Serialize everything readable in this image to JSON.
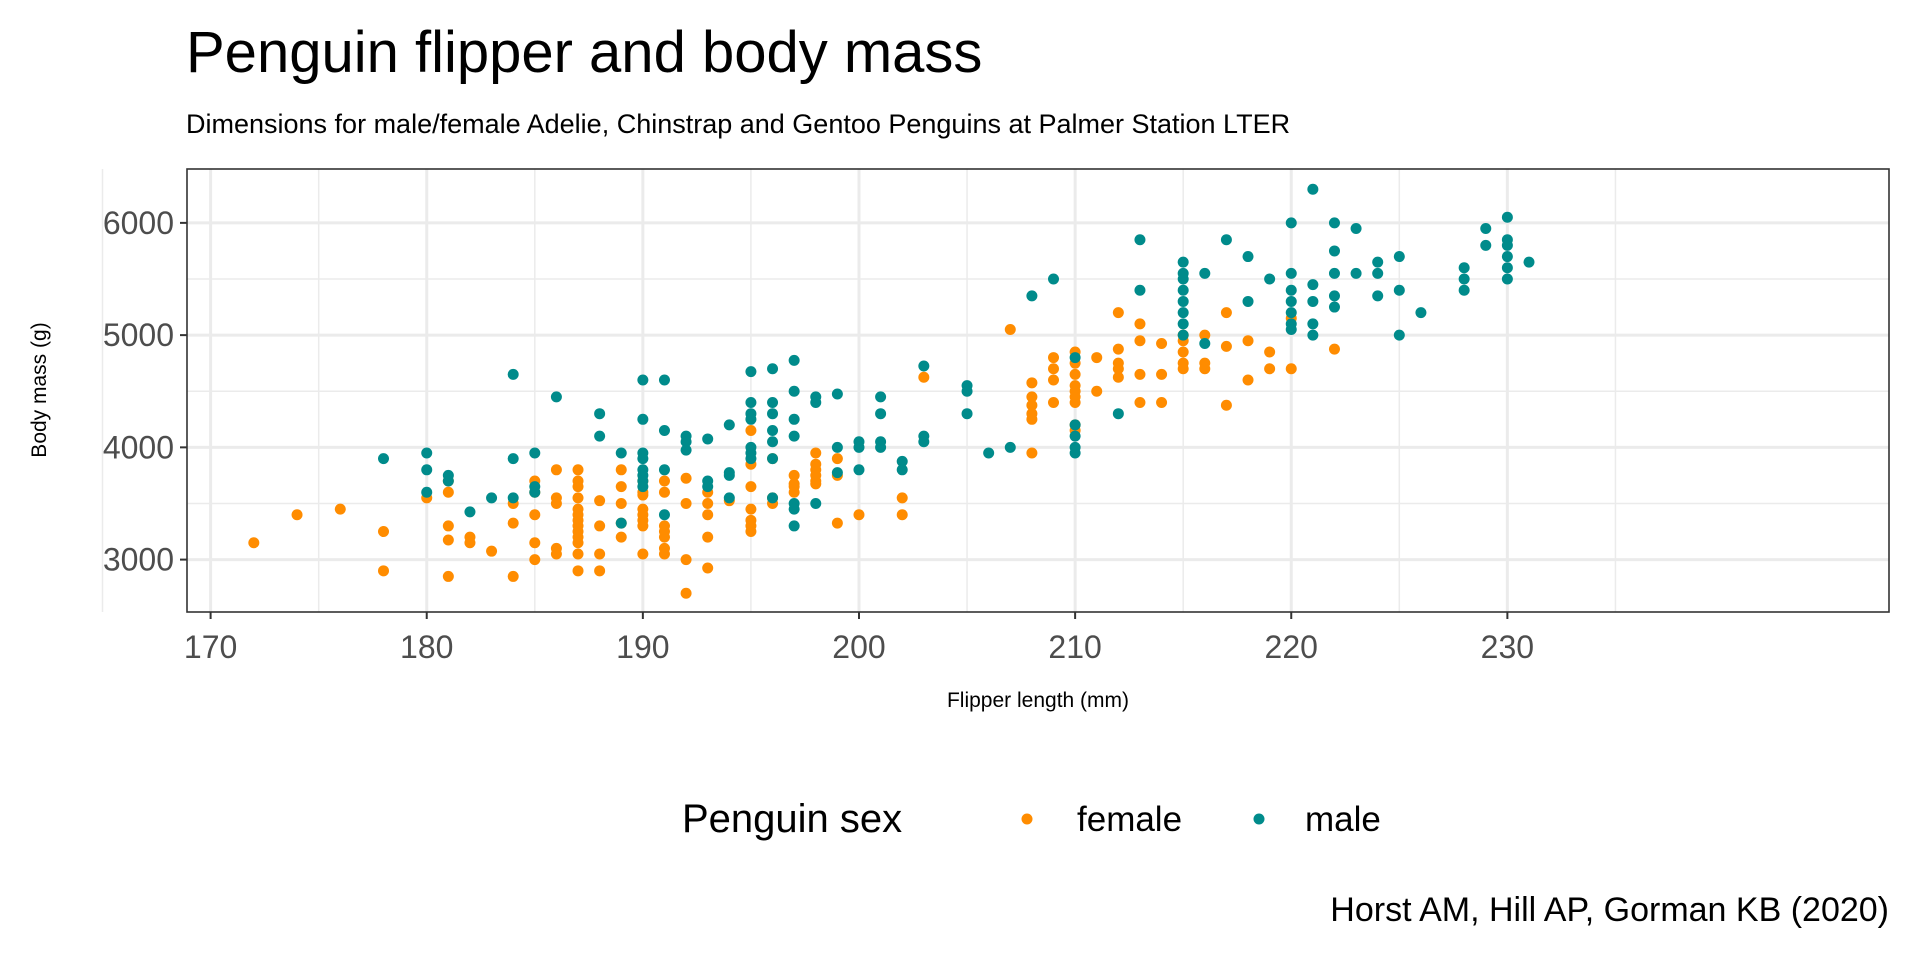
{
  "chart_data": {
    "type": "scatter",
    "title": "Penguin flipper and body mass",
    "subtitle": "Dimensions for male/female Adelie, Chinstrap and Gentoo Penguins at Palmer Station LTER",
    "xlabel": "Flipper length (mm)",
    "ylabel": "Body mass (g)",
    "caption": "Horst AM, Hill AP, Gorman KB (2020)",
    "xlim": [
      169,
      233
    ],
    "ylim": [
      2500,
      6500
    ],
    "x_ticks": [
      170,
      180,
      190,
      200,
      210,
      220,
      230
    ],
    "y_ticks": [
      3000,
      4000,
      5000,
      6000
    ],
    "grid": true,
    "legend": {
      "title": "Penguin sex",
      "placement": "bottom"
    },
    "series": [
      {
        "name": "female",
        "color": "#FF8C00",
        "points": [
          [
            172,
            3150
          ],
          [
            174,
            3400
          ],
          [
            176,
            3450
          ],
          [
            178,
            3250
          ],
          [
            178,
            2900
          ],
          [
            180,
            3550
          ],
          [
            181,
            3700
          ],
          [
            181,
            3600
          ],
          [
            181,
            3300
          ],
          [
            181,
            3175
          ],
          [
            181,
            2850
          ],
          [
            182,
            3200
          ],
          [
            182,
            3150
          ],
          [
            183,
            3075
          ],
          [
            184,
            3500
          ],
          [
            184,
            3325
          ],
          [
            184,
            2850
          ],
          [
            185,
            3700
          ],
          [
            185,
            3600
          ],
          [
            185,
            3400
          ],
          [
            185,
            3150
          ],
          [
            185,
            3000
          ],
          [
            186,
            3800
          ],
          [
            186,
            3550
          ],
          [
            186,
            3500
          ],
          [
            186,
            3100
          ],
          [
            186,
            3050
          ],
          [
            187,
            3800
          ],
          [
            187,
            3700
          ],
          [
            187,
            3650
          ],
          [
            187,
            3550
          ],
          [
            187,
            3450
          ],
          [
            187,
            3400
          ],
          [
            187,
            3350
          ],
          [
            187,
            3300
          ],
          [
            187,
            3250
          ],
          [
            187,
            3200
          ],
          [
            187,
            3150
          ],
          [
            187,
            3050
          ],
          [
            187,
            2900
          ],
          [
            188,
            3525
          ],
          [
            188,
            3300
          ],
          [
            188,
            3050
          ],
          [
            188,
            2900
          ],
          [
            189,
            3800
          ],
          [
            189,
            3650
          ],
          [
            189,
            3500
          ],
          [
            189,
            3325
          ],
          [
            189,
            3200
          ],
          [
            190,
            3700
          ],
          [
            190,
            3600
          ],
          [
            190,
            3575
          ],
          [
            190,
            3450
          ],
          [
            190,
            3400
          ],
          [
            190,
            3350
          ],
          [
            190,
            3300
          ],
          [
            190,
            3050
          ],
          [
            191,
            3700
          ],
          [
            191,
            3600
          ],
          [
            191,
            3300
          ],
          [
            191,
            3250
          ],
          [
            191,
            3200
          ],
          [
            191,
            3100
          ],
          [
            191,
            3050
          ],
          [
            192,
            3725
          ],
          [
            192,
            3500
          ],
          [
            192,
            3000
          ],
          [
            192,
            2700
          ],
          [
            193,
            3600
          ],
          [
            193,
            3500
          ],
          [
            193,
            3400
          ],
          [
            193,
            3200
          ],
          [
            193,
            2925
          ],
          [
            194,
            3525
          ],
          [
            195,
            4150
          ],
          [
            195,
            3850
          ],
          [
            195,
            3650
          ],
          [
            195,
            3450
          ],
          [
            195,
            3350
          ],
          [
            195,
            3300
          ],
          [
            195,
            3250
          ],
          [
            196,
            3900
          ],
          [
            196,
            3550
          ],
          [
            196,
            3500
          ],
          [
            197,
            3750
          ],
          [
            197,
            3675
          ],
          [
            197,
            3650
          ],
          [
            197,
            3600
          ],
          [
            198,
            3950
          ],
          [
            198,
            3850
          ],
          [
            198,
            3800
          ],
          [
            198,
            3750
          ],
          [
            198,
            3700
          ],
          [
            198,
            3675
          ],
          [
            199,
            3900
          ],
          [
            199,
            3750
          ],
          [
            199,
            3325
          ],
          [
            200,
            3400
          ],
          [
            202,
            3550
          ],
          [
            202,
            3400
          ],
          [
            203,
            4625
          ],
          [
            207,
            5050
          ],
          [
            208,
            4575
          ],
          [
            208,
            4450
          ],
          [
            208,
            4375
          ],
          [
            208,
            4300
          ],
          [
            208,
            4250
          ],
          [
            208,
            3950
          ],
          [
            209,
            4800
          ],
          [
            209,
            4700
          ],
          [
            209,
            4600
          ],
          [
            209,
            4400
          ],
          [
            210,
            4850
          ],
          [
            210,
            4750
          ],
          [
            210,
            4650
          ],
          [
            210,
            4550
          ],
          [
            210,
            4500
          ],
          [
            210,
            4450
          ],
          [
            210,
            4400
          ],
          [
            210,
            4200
          ],
          [
            210,
            4150
          ],
          [
            211,
            4800
          ],
          [
            211,
            4500
          ],
          [
            212,
            5200
          ],
          [
            212,
            4875
          ],
          [
            212,
            4750
          ],
          [
            212,
            4700
          ],
          [
            212,
            4625
          ],
          [
            213,
            5100
          ],
          [
            213,
            4950
          ],
          [
            213,
            4650
          ],
          [
            213,
            4400
          ],
          [
            214,
            4925
          ],
          [
            214,
            4650
          ],
          [
            214,
            4400
          ],
          [
            215,
            5000
          ],
          [
            215,
            4950
          ],
          [
            215,
            4850
          ],
          [
            215,
            4750
          ],
          [
            215,
            4700
          ],
          [
            216,
            5000
          ],
          [
            216,
            4750
          ],
          [
            216,
            4700
          ],
          [
            217,
            5200
          ],
          [
            217,
            4900
          ],
          [
            217,
            4375
          ],
          [
            218,
            4950
          ],
          [
            218,
            4600
          ],
          [
            219,
            4850
          ],
          [
            219,
            4700
          ],
          [
            220,
            5150
          ],
          [
            220,
            4700
          ],
          [
            222,
            4875
          ]
        ]
      },
      {
        "name": "male",
        "color": "#008B8B",
        "points": [
          [
            178,
            3900
          ],
          [
            180,
            3950
          ],
          [
            180,
            3800
          ],
          [
            180,
            3600
          ],
          [
            181,
            3750
          ],
          [
            181,
            3700
          ],
          [
            182,
            3425
          ],
          [
            183,
            3550
          ],
          [
            184,
            4650
          ],
          [
            184,
            3900
          ],
          [
            184,
            3550
          ],
          [
            185,
            3950
          ],
          [
            185,
            3650
          ],
          [
            185,
            3600
          ],
          [
            186,
            4450
          ],
          [
            188,
            4300
          ],
          [
            188,
            4100
          ],
          [
            189,
            3950
          ],
          [
            189,
            3325
          ],
          [
            190,
            4600
          ],
          [
            190,
            4250
          ],
          [
            190,
            3950
          ],
          [
            190,
            3900
          ],
          [
            190,
            3800
          ],
          [
            190,
            3750
          ],
          [
            190,
            3700
          ],
          [
            190,
            3650
          ],
          [
            191,
            4600
          ],
          [
            191,
            4150
          ],
          [
            191,
            3800
          ],
          [
            191,
            3400
          ],
          [
            192,
            4100
          ],
          [
            192,
            4050
          ],
          [
            192,
            3975
          ],
          [
            193,
            4075
          ],
          [
            193,
            3700
          ],
          [
            193,
            3650
          ],
          [
            194,
            4200
          ],
          [
            194,
            3775
          ],
          [
            194,
            3750
          ],
          [
            194,
            3550
          ],
          [
            195,
            4675
          ],
          [
            195,
            4400
          ],
          [
            195,
            4300
          ],
          [
            195,
            4250
          ],
          [
            195,
            4000
          ],
          [
            195,
            3950
          ],
          [
            195,
            3900
          ],
          [
            196,
            4700
          ],
          [
            196,
            4400
          ],
          [
            196,
            4300
          ],
          [
            196,
            4150
          ],
          [
            196,
            4050
          ],
          [
            196,
            3900
          ],
          [
            196,
            3550
          ],
          [
            197,
            4775
          ],
          [
            197,
            4500
          ],
          [
            197,
            4250
          ],
          [
            197,
            4100
          ],
          [
            197,
            3500
          ],
          [
            197,
            3450
          ],
          [
            197,
            3300
          ],
          [
            198,
            4450
          ],
          [
            198,
            4400
          ],
          [
            198,
            3500
          ],
          [
            199,
            4475
          ],
          [
            199,
            4000
          ],
          [
            199,
            3775
          ],
          [
            200,
            4050
          ],
          [
            200,
            4000
          ],
          [
            200,
            3800
          ],
          [
            201,
            4450
          ],
          [
            201,
            4300
          ],
          [
            201,
            4050
          ],
          [
            201,
            4000
          ],
          [
            202,
            3875
          ],
          [
            202,
            3800
          ],
          [
            203,
            4725
          ],
          [
            203,
            4100
          ],
          [
            203,
            4050
          ],
          [
            205,
            4550
          ],
          [
            205,
            4500
          ],
          [
            205,
            4300
          ],
          [
            206,
            3950
          ],
          [
            207,
            4000
          ],
          [
            208,
            5350
          ],
          [
            209,
            5500
          ],
          [
            210,
            4800
          ],
          [
            210,
            4200
          ],
          [
            210,
            4100
          ],
          [
            210,
            4000
          ],
          [
            210,
            3950
          ],
          [
            212,
            4300
          ],
          [
            213,
            5850
          ],
          [
            213,
            5400
          ],
          [
            215,
            5650
          ],
          [
            215,
            5550
          ],
          [
            215,
            5500
          ],
          [
            215,
            5400
          ],
          [
            215,
            5300
          ],
          [
            215,
            5200
          ],
          [
            215,
            5100
          ],
          [
            215,
            5000
          ],
          [
            216,
            5550
          ],
          [
            216,
            4925
          ],
          [
            217,
            5850
          ],
          [
            218,
            5700
          ],
          [
            218,
            5300
          ],
          [
            219,
            5500
          ],
          [
            220,
            6000
          ],
          [
            220,
            5550
          ],
          [
            220,
            5400
          ],
          [
            220,
            5300
          ],
          [
            220,
            5200
          ],
          [
            220,
            5100
          ],
          [
            220,
            5050
          ],
          [
            221,
            6300
          ],
          [
            221,
            5450
          ],
          [
            221,
            5300
          ],
          [
            221,
            5100
          ],
          [
            221,
            5000
          ],
          [
            222,
            6000
          ],
          [
            222,
            5750
          ],
          [
            222,
            5550
          ],
          [
            222,
            5350
          ],
          [
            222,
            5250
          ],
          [
            223,
            5950
          ],
          [
            223,
            5550
          ],
          [
            224,
            5650
          ],
          [
            224,
            5550
          ],
          [
            224,
            5350
          ],
          [
            225,
            5700
          ],
          [
            225,
            5400
          ],
          [
            225,
            5000
          ],
          [
            226,
            5200
          ],
          [
            228,
            5600
          ],
          [
            228,
            5500
          ],
          [
            228,
            5400
          ],
          [
            229,
            5950
          ],
          [
            229,
            5800
          ],
          [
            230,
            6050
          ],
          [
            230,
            5850
          ],
          [
            230,
            5800
          ],
          [
            230,
            5700
          ],
          [
            230,
            5600
          ],
          [
            230,
            5500
          ],
          [
            231,
            5650
          ]
        ]
      }
    ]
  }
}
